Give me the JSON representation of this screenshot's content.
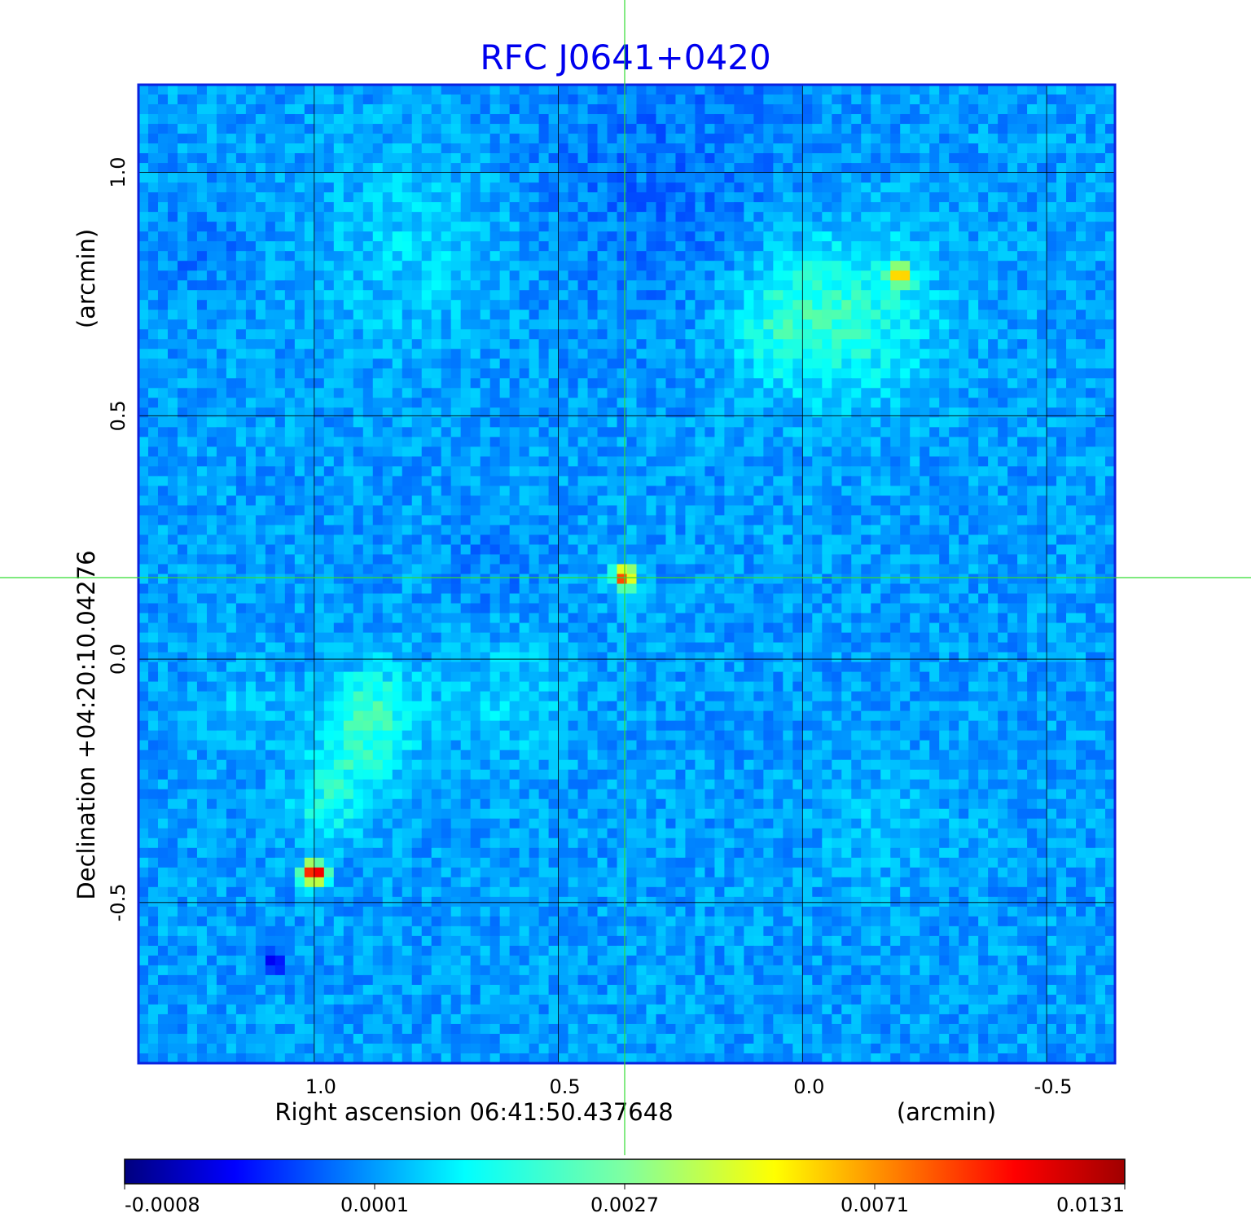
{
  "chart_data": {
    "type": "heatmap",
    "title": "RFC J0641+0420",
    "xlabel": "Right ascension  06:41:50.437648",
    "xunit": "(arcmin)",
    "ylabel": "Declination  +04:20:10.04276",
    "yunit": "(arcmin)",
    "xlim": [
      1.36,
      -0.64
    ],
    "ylim": [
      -0.83,
      1.18
    ],
    "x_ticks": [
      "1.0",
      "0.5",
      "0.0",
      "-0.5"
    ],
    "x_tick_values": [
      1.0,
      0.5,
      0.0,
      -0.5
    ],
    "y_ticks": [
      "1.0",
      "0.5",
      "0.0",
      "-0.5"
    ],
    "y_tick_values": [
      1.0,
      0.5,
      0.0,
      -0.5
    ],
    "grid": true,
    "crosshair": {
      "ra": 0.365,
      "dec": 0.168
    },
    "colormap": "jet",
    "colorbar": {
      "ticks": [
        "-0.0008",
        "0.0001",
        "0.0027",
        "0.0071",
        "0.0131"
      ],
      "placement": "bottom"
    },
    "sources": [
      {
        "ra": 1.0,
        "dec": -0.44,
        "level": 0.97
      },
      {
        "ra": 0.365,
        "dec": 0.168,
        "level": 0.82
      },
      {
        "ra": -0.2,
        "dec": 0.79,
        "level": 0.66
      }
    ]
  },
  "colors": {
    "frame": "#0a22e0",
    "title": "#0000ee",
    "grid": "#000000",
    "crosshair": "#33dd33"
  }
}
